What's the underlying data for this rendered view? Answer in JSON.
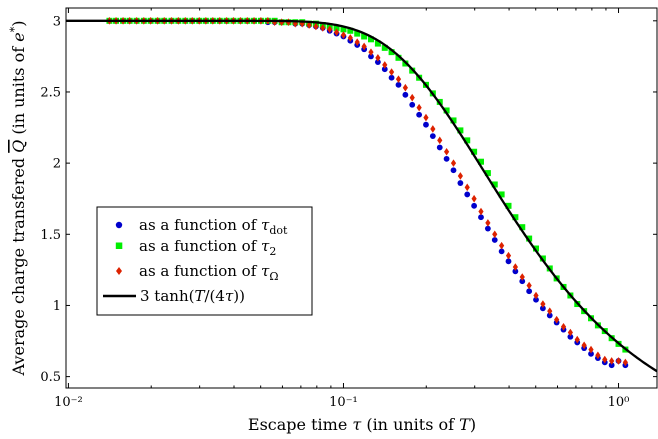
{
  "chart_data": {
    "type": "scatter",
    "x_scale": "log",
    "xlim": [
      0.0098,
      1.38
    ],
    "ylim": [
      0.42,
      3.09
    ],
    "yticks": [
      0.5,
      1,
      1.5,
      2,
      2.5,
      3
    ],
    "ytick_labels": [
      "0.5",
      "1",
      "1.5",
      "2",
      "2.5",
      "3"
    ],
    "xticks": [
      0.01,
      0.1,
      1
    ],
    "xtick_labels": [
      "10⁻²",
      "10⁻¹",
      "10⁰"
    ],
    "xlabel": "Escape time τ (in units of T)",
    "ylabel": "Average charge transfered Q̅ (in units of e*)",
    "grid": false,
    "legend_position": "lower-left",
    "series": [
      {
        "name": "as a function of τdot",
        "marker": "circle",
        "color": "#0000cc",
        "x": [
          0.0141,
          0.0149,
          0.0158,
          0.0167,
          0.0177,
          0.0188,
          0.0199,
          0.0211,
          0.0223,
          0.0237,
          0.0251,
          0.0266,
          0.0282,
          0.0299,
          0.0316,
          0.0335,
          0.0355,
          0.0376,
          0.0398,
          0.0422,
          0.0447,
          0.0473,
          0.0501,
          0.0531,
          0.0562,
          0.0596,
          0.0631,
          0.0668,
          0.0708,
          0.075,
          0.0794,
          0.0841,
          0.0891,
          0.0944,
          0.1,
          0.1059,
          0.1122,
          0.1189,
          0.1259,
          0.1334,
          0.1413,
          0.1496,
          0.1585,
          0.1679,
          0.1778,
          0.1884,
          0.1995,
          0.2113,
          0.2239,
          0.2371,
          0.2512,
          0.2661,
          0.2818,
          0.2985,
          0.3162,
          0.335,
          0.3548,
          0.3758,
          0.3981,
          0.4217,
          0.4467,
          0.4732,
          0.5012,
          0.5309,
          0.5623,
          0.5957,
          0.631,
          0.6683,
          0.7079,
          0.7499,
          0.7943,
          0.8414,
          0.8913,
          0.9441,
          1.0,
          1.059
        ],
        "y": [
          3.0,
          3.0,
          3.0,
          3.0,
          3.0,
          3.0,
          3.0,
          3.0,
          3.0,
          3.0,
          3.0,
          3.0,
          3.0,
          3.0,
          3.0,
          3.0,
          3.0,
          3.0,
          3.0,
          3.0,
          3.0,
          3.0,
          3.0,
          2.99,
          2.99,
          2.99,
          2.99,
          2.98,
          2.98,
          2.97,
          2.96,
          2.95,
          2.93,
          2.91,
          2.89,
          2.86,
          2.83,
          2.8,
          2.75,
          2.71,
          2.66,
          2.6,
          2.55,
          2.48,
          2.41,
          2.34,
          2.27,
          2.19,
          2.11,
          2.03,
          1.95,
          1.86,
          1.78,
          1.7,
          1.62,
          1.54,
          1.46,
          1.38,
          1.31,
          1.24,
          1.17,
          1.1,
          1.04,
          0.98,
          0.93,
          0.88,
          0.83,
          0.78,
          0.74,
          0.7,
          0.66,
          0.63,
          0.6,
          0.58,
          0.61,
          0.58
        ]
      },
      {
        "name": "as a function of τ2",
        "marker": "square",
        "color": "#00ee00",
        "x": [
          0.0141,
          0.0149,
          0.0158,
          0.0167,
          0.0177,
          0.0188,
          0.0199,
          0.0211,
          0.0223,
          0.0237,
          0.0251,
          0.0266,
          0.0282,
          0.0299,
          0.0316,
          0.0335,
          0.0355,
          0.0376,
          0.0398,
          0.0422,
          0.0447,
          0.0473,
          0.0501,
          0.0531,
          0.0562,
          0.0596,
          0.0631,
          0.0668,
          0.0708,
          0.075,
          0.0794,
          0.0841,
          0.0891,
          0.0944,
          0.1,
          0.1059,
          0.1122,
          0.1189,
          0.1259,
          0.1334,
          0.1413,
          0.1496,
          0.1585,
          0.1679,
          0.1778,
          0.1884,
          0.1995,
          0.2113,
          0.2239,
          0.2371,
          0.2512,
          0.2661,
          0.2818,
          0.2985,
          0.3162,
          0.335,
          0.3548,
          0.3758,
          0.3981,
          0.4217,
          0.4467,
          0.4732,
          0.5012,
          0.5309,
          0.5623,
          0.5957,
          0.631,
          0.6683,
          0.7079,
          0.7499,
          0.7943,
          0.8414,
          0.8913,
          0.9441,
          1.0,
          1.059
        ],
        "y": [
          3.0,
          3.0,
          3.0,
          3.0,
          3.0,
          3.0,
          3.0,
          3.0,
          3.0,
          3.0,
          3.0,
          3.0,
          3.0,
          3.0,
          3.0,
          3.0,
          3.0,
          3.0,
          3.0,
          3.0,
          3.0,
          3.0,
          3.0,
          3.0,
          3.0,
          2.99,
          2.99,
          2.99,
          2.99,
          2.98,
          2.98,
          2.97,
          2.96,
          2.95,
          2.94,
          2.93,
          2.91,
          2.89,
          2.87,
          2.84,
          2.81,
          2.78,
          2.74,
          2.7,
          2.65,
          2.6,
          2.55,
          2.49,
          2.43,
          2.37,
          2.3,
          2.23,
          2.16,
          2.08,
          2.01,
          1.93,
          1.85,
          1.78,
          1.7,
          1.62,
          1.55,
          1.47,
          1.4,
          1.33,
          1.26,
          1.19,
          1.13,
          1.07,
          1.01,
          0.96,
          0.91,
          0.86,
          0.82,
          0.77,
          0.73,
          0.69
        ]
      },
      {
        "name": "as a function of τΩ",
        "marker": "diamond",
        "color": "#dd2200",
        "x": [
          0.0141,
          0.0149,
          0.0158,
          0.0167,
          0.0177,
          0.0188,
          0.0199,
          0.0211,
          0.0223,
          0.0237,
          0.0251,
          0.0266,
          0.0282,
          0.0299,
          0.0316,
          0.0335,
          0.0355,
          0.0376,
          0.0398,
          0.0422,
          0.0447,
          0.0473,
          0.0501,
          0.0531,
          0.0562,
          0.0596,
          0.0631,
          0.0668,
          0.0708,
          0.075,
          0.0794,
          0.0841,
          0.0891,
          0.0944,
          0.1,
          0.1059,
          0.1122,
          0.1189,
          0.1259,
          0.1334,
          0.1413,
          0.1496,
          0.1585,
          0.1679,
          0.1778,
          0.1884,
          0.1995,
          0.2113,
          0.2239,
          0.2371,
          0.2512,
          0.2661,
          0.2818,
          0.2985,
          0.3162,
          0.335,
          0.3548,
          0.3758,
          0.3981,
          0.4217,
          0.4467,
          0.4732,
          0.5012,
          0.5309,
          0.5623,
          0.5957,
          0.631,
          0.6683,
          0.7079,
          0.7499,
          0.7943,
          0.8414,
          0.8913,
          0.9441,
          1.0,
          1.059
        ],
        "y": [
          3.0,
          3.0,
          3.0,
          3.0,
          3.0,
          3.0,
          3.0,
          3.0,
          3.0,
          3.0,
          3.0,
          3.0,
          3.0,
          3.0,
          3.0,
          3.0,
          3.0,
          3.0,
          3.0,
          3.0,
          3.0,
          3.0,
          3.0,
          3.0,
          2.99,
          2.99,
          2.99,
          2.98,
          2.98,
          2.97,
          2.96,
          2.95,
          2.94,
          2.92,
          2.9,
          2.88,
          2.85,
          2.82,
          2.78,
          2.74,
          2.69,
          2.64,
          2.59,
          2.53,
          2.46,
          2.39,
          2.32,
          2.24,
          2.16,
          2.08,
          2.0,
          1.91,
          1.83,
          1.75,
          1.66,
          1.58,
          1.5,
          1.42,
          1.35,
          1.27,
          1.2,
          1.14,
          1.07,
          1.01,
          0.96,
          0.9,
          0.85,
          0.81,
          0.76,
          0.72,
          0.69,
          0.65,
          0.62,
          0.61,
          0.61,
          0.6
        ]
      }
    ],
    "line_series": {
      "name": "3 tanh(T/(4τ))",
      "color": "#000000",
      "function": "3*tanh(1/(4*x))"
    }
  }
}
